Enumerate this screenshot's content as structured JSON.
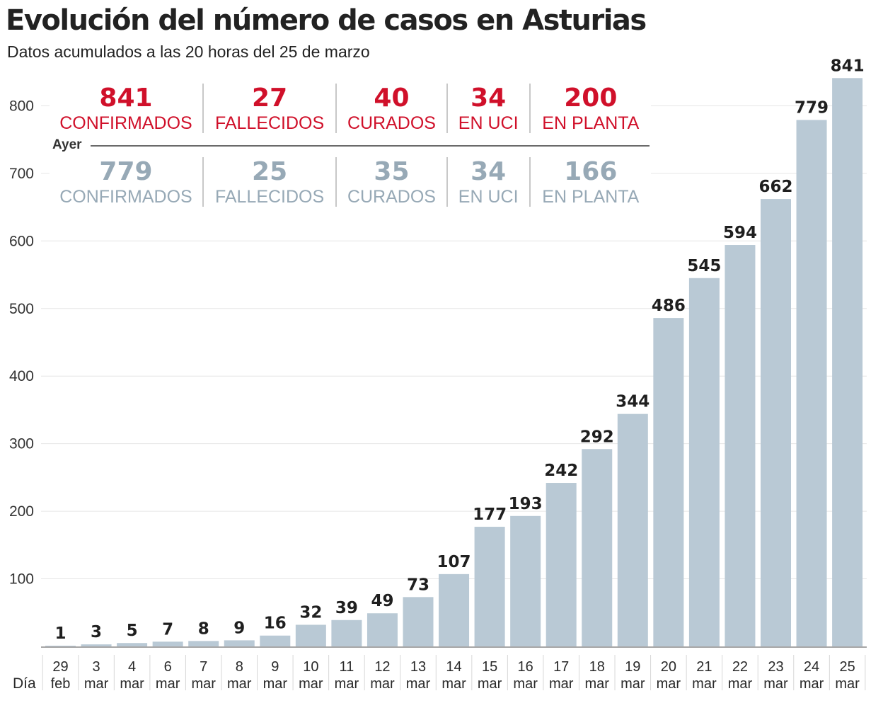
{
  "header": {
    "title": "Evolución del número de casos en Asturias",
    "subtitle": "Datos acumulados a las 20 horas del 25 de marzo"
  },
  "stats": {
    "today": [
      {
        "value": "841",
        "label": "CONFIRMADOS"
      },
      {
        "value": "27",
        "label": "FALLECIDOS"
      },
      {
        "value": "40",
        "label": "CURADOS"
      },
      {
        "value": "34",
        "label": "EN UCI"
      },
      {
        "value": "200",
        "label": "EN PLANTA"
      }
    ],
    "yesterday_label": "Ayer",
    "yesterday": [
      {
        "value": "779",
        "label": "CONFIRMADOS"
      },
      {
        "value": "25",
        "label": "FALLECIDOS"
      },
      {
        "value": "35",
        "label": "CURADOS"
      },
      {
        "value": "34",
        "label": "EN UCI"
      },
      {
        "value": "166",
        "label": "EN PLANTA"
      }
    ]
  },
  "colors": {
    "bar": "#b9c9d5",
    "today": "#d0102a",
    "yesterday": "#97a9b6",
    "grid": "#e6e6e6"
  },
  "chart_data": {
    "type": "bar",
    "title": "Evolución del número de casos en Asturias",
    "subtitle": "Datos acumulados a las 20 horas del 25 de marzo",
    "xlabel": "Día",
    "ylabel": "",
    "ylim": [
      0,
      850
    ],
    "yticks": [
      100,
      200,
      300,
      400,
      500,
      600,
      700,
      800
    ],
    "categories": [
      [
        "29",
        "feb"
      ],
      [
        "3",
        "mar"
      ],
      [
        "4",
        "mar"
      ],
      [
        "6",
        "mar"
      ],
      [
        "7",
        "mar"
      ],
      [
        "8",
        "mar"
      ],
      [
        "9",
        "mar"
      ],
      [
        "10",
        "mar"
      ],
      [
        "11",
        "mar"
      ],
      [
        "12",
        "mar"
      ],
      [
        "13",
        "mar"
      ],
      [
        "14",
        "mar"
      ],
      [
        "15",
        "mar"
      ],
      [
        "16",
        "mar"
      ],
      [
        "17",
        "mar"
      ],
      [
        "18",
        "mar"
      ],
      [
        "19",
        "mar"
      ],
      [
        "20",
        "mar"
      ],
      [
        "21",
        "mar"
      ],
      [
        "22",
        "mar"
      ],
      [
        "23",
        "mar"
      ],
      [
        "24",
        "mar"
      ],
      [
        "25",
        "mar"
      ]
    ],
    "values": [
      1,
      3,
      5,
      7,
      8,
      9,
      16,
      32,
      39,
      49,
      73,
      107,
      177,
      193,
      242,
      292,
      344,
      486,
      545,
      594,
      662,
      779,
      841
    ],
    "grid": true
  }
}
